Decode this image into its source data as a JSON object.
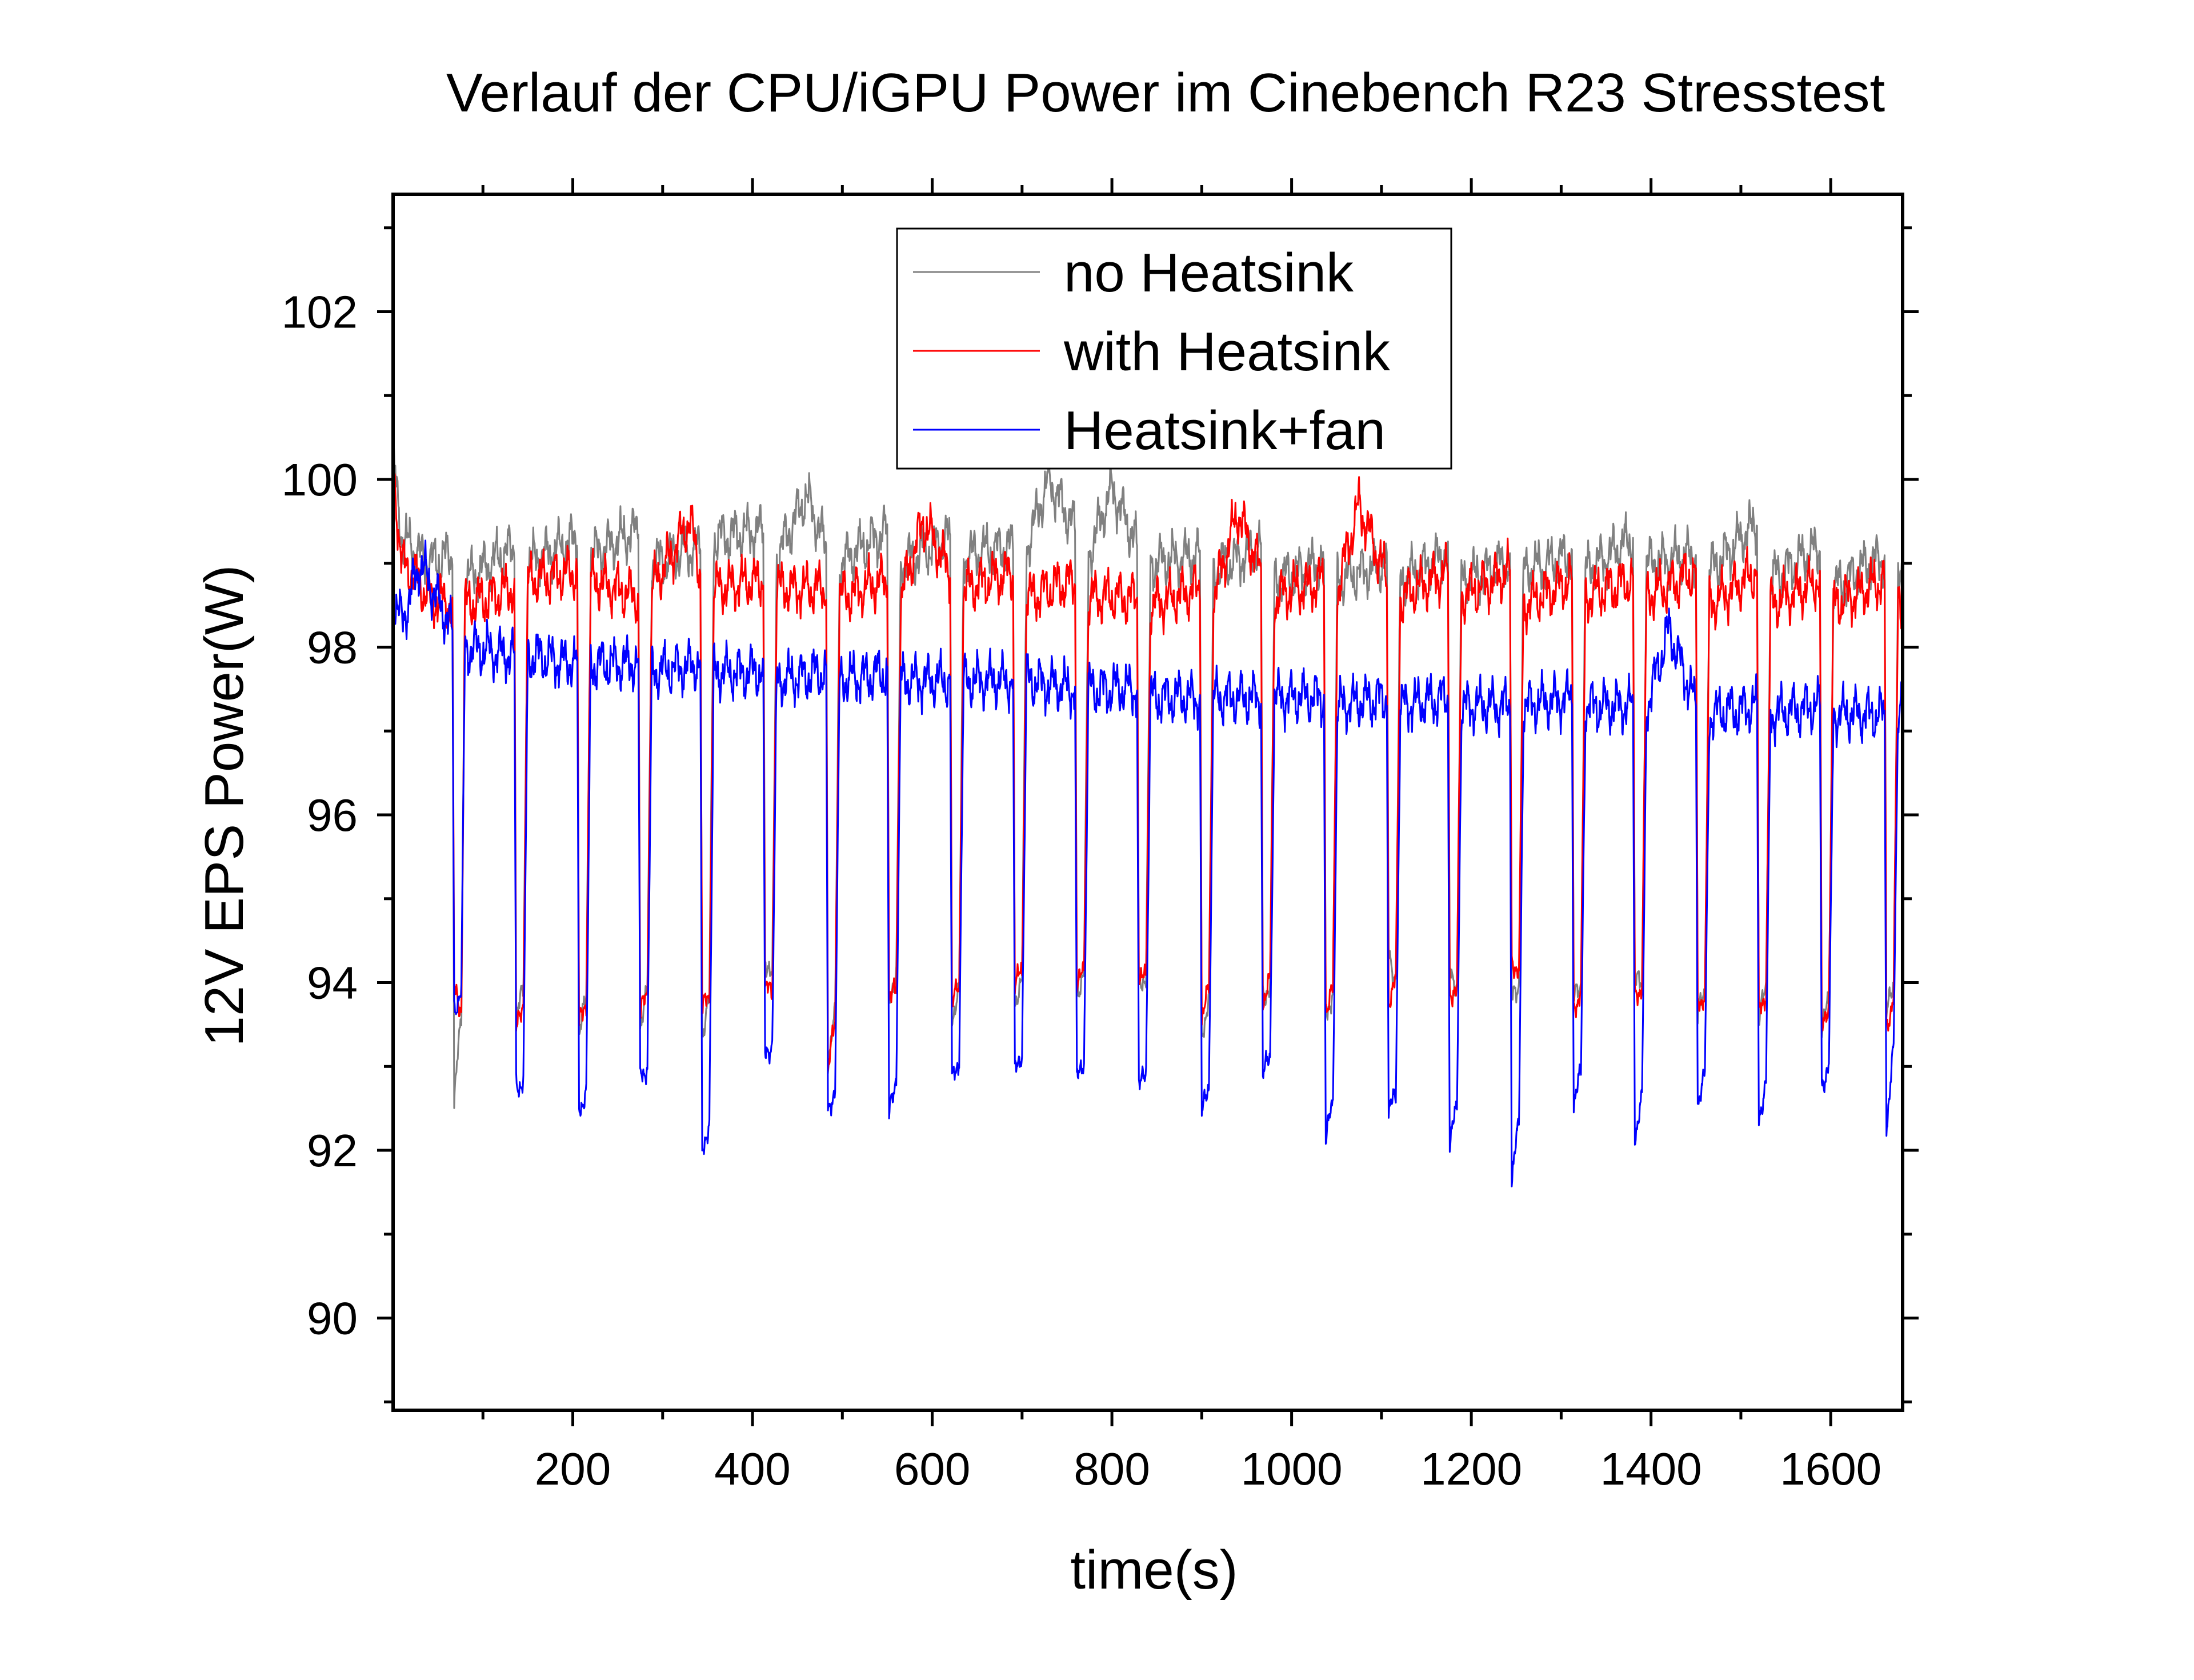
{
  "chart_data": {
    "type": "line",
    "title": "Verlauf der CPU/iGPU Power im Cinebench R23 Stresstest",
    "xlabel": "time(s)",
    "ylabel": "12V EPS Power(W)",
    "xlim": [
      0,
      1680
    ],
    "ylim": [
      88.9,
      103.4
    ],
    "x_ticks": [
      200,
      400,
      600,
      800,
      1000,
      1200,
      1400,
      1600
    ],
    "x_minor_ticks": [
      100,
      300,
      500,
      700,
      900,
      1100,
      1300,
      1500
    ],
    "y_ticks": [
      90,
      92,
      94,
      96,
      98,
      100,
      102
    ],
    "y_minor_ticks": [
      89,
      91,
      93,
      95,
      97,
      99,
      101,
      103
    ],
    "grid": false,
    "legend_position": "top-center",
    "dip_times": [
      66,
      135,
      205,
      273,
      342,
      412,
      482,
      550,
      620,
      690,
      759,
      828,
      898,
      966,
      1036,
      1106,
      1174,
      1243,
      1312,
      1380,
      1450,
      1518,
      1588,
      1660
    ],
    "series": [
      {
        "name": "no Heatsink",
        "color": "#808080",
        "points": [
          [
            0,
            100.2
          ],
          [
            10,
            99.3
          ],
          [
            40,
            99.0
          ],
          [
            66,
            99.1
          ],
          [
            68,
            92.6
          ],
          [
            76,
            93.6
          ],
          [
            80,
            98.8
          ],
          [
            135,
            99.2
          ],
          [
            137,
            93.6
          ],
          [
            145,
            93.9
          ],
          [
            150,
            99.0
          ],
          [
            205,
            99.3
          ],
          [
            207,
            93.4
          ],
          [
            215,
            93.8
          ],
          [
            220,
            99.1
          ],
          [
            273,
            99.4
          ],
          [
            275,
            93.5
          ],
          [
            283,
            93.9
          ],
          [
            288,
            99.0
          ],
          [
            342,
            99.2
          ],
          [
            344,
            93.4
          ],
          [
            352,
            93.8
          ],
          [
            357,
            99.3
          ],
          [
            412,
            99.4
          ],
          [
            414,
            94.3
          ],
          [
            422,
            94.0
          ],
          [
            427,
            99.1
          ],
          [
            460,
            99.8
          ],
          [
            482,
            99.2
          ],
          [
            484,
            93.1
          ],
          [
            492,
            93.6
          ],
          [
            497,
            99.0
          ],
          [
            550,
            99.4
          ],
          [
            552,
            93.9
          ],
          [
            560,
            94.0
          ],
          [
            565,
            99.0
          ],
          [
            620,
            99.3
          ],
          [
            622,
            93.6
          ],
          [
            630,
            93.9
          ],
          [
            635,
            99.1
          ],
          [
            690,
            99.2
          ],
          [
            692,
            93.8
          ],
          [
            700,
            94.0
          ],
          [
            705,
            99.2
          ],
          [
            730,
            100.0
          ],
          [
            759,
            99.4
          ],
          [
            761,
            93.9
          ],
          [
            769,
            94.1
          ],
          [
            774,
            99.1
          ],
          [
            800,
            99.9
          ],
          [
            828,
            99.2
          ],
          [
            830,
            94.1
          ],
          [
            838,
            94.0
          ],
          [
            843,
            99.0
          ],
          [
            898,
            99.1
          ],
          [
            900,
            93.4
          ],
          [
            908,
            93.8
          ],
          [
            913,
            98.9
          ],
          [
            966,
            99.2
          ],
          [
            968,
            93.8
          ],
          [
            976,
            94.0
          ],
          [
            981,
            98.8
          ],
          [
            1036,
            99.0
          ],
          [
            1038,
            93.6
          ],
          [
            1046,
            93.9
          ],
          [
            1051,
            98.8
          ],
          [
            1106,
            99.0
          ],
          [
            1108,
            94.4
          ],
          [
            1116,
            94.0
          ],
          [
            1121,
            98.8
          ],
          [
            1174,
            99.1
          ],
          [
            1176,
            94.1
          ],
          [
            1184,
            94.0
          ],
          [
            1189,
            98.8
          ],
          [
            1243,
            99.0
          ],
          [
            1245,
            93.8
          ],
          [
            1253,
            94.0
          ],
          [
            1258,
            98.9
          ],
          [
            1312,
            99.1
          ],
          [
            1314,
            93.8
          ],
          [
            1322,
            94.0
          ],
          [
            1327,
            98.9
          ],
          [
            1380,
            99.3
          ],
          [
            1382,
            94.0
          ],
          [
            1390,
            94.0
          ],
          [
            1395,
            99.0
          ],
          [
            1450,
            99.1
          ],
          [
            1452,
            93.6
          ],
          [
            1460,
            93.9
          ],
          [
            1465,
            98.9
          ],
          [
            1518,
            99.5
          ],
          [
            1520,
            93.6
          ],
          [
            1528,
            93.9
          ],
          [
            1533,
            98.8
          ],
          [
            1588,
            99.2
          ],
          [
            1590,
            93.4
          ],
          [
            1598,
            93.8
          ],
          [
            1603,
            98.7
          ],
          [
            1660,
            99.1
          ],
          [
            1662,
            93.6
          ],
          [
            1670,
            94.0
          ],
          [
            1675,
            98.8
          ],
          [
            1680,
            98.6
          ]
        ]
      },
      {
        "name": "with Heatsink",
        "color": "#ff0000",
        "points": [
          [
            0,
            100.1
          ],
          [
            10,
            99.0
          ],
          [
            40,
            98.6
          ],
          [
            66,
            98.5
          ],
          [
            68,
            93.9
          ],
          [
            76,
            93.7
          ],
          [
            80,
            98.5
          ],
          [
            135,
            98.7
          ],
          [
            137,
            93.4
          ],
          [
            145,
            93.8
          ],
          [
            150,
            98.8
          ],
          [
            205,
            98.9
          ],
          [
            207,
            93.5
          ],
          [
            215,
            93.8
          ],
          [
            220,
            98.8
          ],
          [
            273,
            98.6
          ],
          [
            275,
            93.6
          ],
          [
            283,
            93.9
          ],
          [
            288,
            98.7
          ],
          [
            330,
            99.5
          ],
          [
            342,
            98.9
          ],
          [
            344,
            93.7
          ],
          [
            352,
            93.8
          ],
          [
            357,
            98.7
          ],
          [
            412,
            98.8
          ],
          [
            414,
            93.9
          ],
          [
            422,
            93.9
          ],
          [
            427,
            98.7
          ],
          [
            482,
            98.7
          ],
          [
            484,
            92.9
          ],
          [
            492,
            93.6
          ],
          [
            497,
            98.6
          ],
          [
            550,
            98.8
          ],
          [
            552,
            93.8
          ],
          [
            560,
            93.9
          ],
          [
            565,
            98.6
          ],
          [
            590,
            99.5
          ],
          [
            620,
            98.9
          ],
          [
            622,
            93.8
          ],
          [
            630,
            93.9
          ],
          [
            635,
            98.7
          ],
          [
            690,
            98.9
          ],
          [
            692,
            94.0
          ],
          [
            700,
            94.1
          ],
          [
            705,
            98.6
          ],
          [
            759,
            98.8
          ],
          [
            761,
            94.0
          ],
          [
            769,
            94.1
          ],
          [
            774,
            98.6
          ],
          [
            828,
            98.6
          ],
          [
            830,
            94.1
          ],
          [
            838,
            94.0
          ],
          [
            843,
            98.5
          ],
          [
            898,
            98.7
          ],
          [
            900,
            93.6
          ],
          [
            908,
            93.9
          ],
          [
            913,
            98.6
          ],
          [
            940,
            99.6
          ],
          [
            966,
            98.9
          ],
          [
            968,
            93.8
          ],
          [
            976,
            94.0
          ],
          [
            981,
            98.6
          ],
          [
            1036,
            98.8
          ],
          [
            1038,
            93.7
          ],
          [
            1046,
            93.9
          ],
          [
            1051,
            98.7
          ],
          [
            1075,
            99.7
          ],
          [
            1106,
            98.8
          ],
          [
            1108,
            93.8
          ],
          [
            1116,
            94.0
          ],
          [
            1121,
            98.6
          ],
          [
            1174,
            98.9
          ],
          [
            1176,
            93.9
          ],
          [
            1184,
            93.9
          ],
          [
            1189,
            98.6
          ],
          [
            1243,
            98.9
          ],
          [
            1245,
            94.3
          ],
          [
            1253,
            94.1
          ],
          [
            1258,
            98.5
          ],
          [
            1312,
            98.8
          ],
          [
            1314,
            93.7
          ],
          [
            1322,
            93.9
          ],
          [
            1327,
            98.6
          ],
          [
            1380,
            98.8
          ],
          [
            1382,
            93.8
          ],
          [
            1390,
            94.0
          ],
          [
            1395,
            98.6
          ],
          [
            1450,
            98.9
          ],
          [
            1452,
            93.7
          ],
          [
            1460,
            93.9
          ],
          [
            1465,
            98.5
          ],
          [
            1518,
            98.9
          ],
          [
            1520,
            93.6
          ],
          [
            1528,
            93.9
          ],
          [
            1533,
            98.5
          ],
          [
            1588,
            98.8
          ],
          [
            1590,
            93.4
          ],
          [
            1598,
            93.8
          ],
          [
            1603,
            98.5
          ],
          [
            1660,
            98.8
          ],
          [
            1662,
            93.4
          ],
          [
            1670,
            93.9
          ],
          [
            1675,
            98.5
          ],
          [
            1680,
            98.4
          ]
        ]
      },
      {
        "name": "Heatsink+fan",
        "color": "#0000ff",
        "points": [
          [
            0,
            98.6
          ],
          [
            10,
            98.3
          ],
          [
            30,
            99.0
          ],
          [
            66,
            98.2
          ],
          [
            68,
            93.7
          ],
          [
            76,
            93.9
          ],
          [
            80,
            98.0
          ],
          [
            135,
            97.9
          ],
          [
            137,
            92.8
          ],
          [
            145,
            92.8
          ],
          [
            150,
            97.9
          ],
          [
            205,
            97.8
          ],
          [
            207,
            92.5
          ],
          [
            215,
            92.7
          ],
          [
            220,
            97.8
          ],
          [
            273,
            97.8
          ],
          [
            275,
            92.9
          ],
          [
            283,
            93.0
          ],
          [
            288,
            97.7
          ],
          [
            342,
            97.8
          ],
          [
            344,
            91.9
          ],
          [
            352,
            92.4
          ],
          [
            357,
            97.7
          ],
          [
            412,
            97.7
          ],
          [
            414,
            93.1
          ],
          [
            422,
            93.3
          ],
          [
            427,
            97.6
          ],
          [
            482,
            97.7
          ],
          [
            484,
            92.4
          ],
          [
            492,
            92.8
          ],
          [
            497,
            97.6
          ],
          [
            550,
            97.7
          ],
          [
            552,
            92.4
          ],
          [
            560,
            92.9
          ],
          [
            565,
            97.6
          ],
          [
            620,
            97.6
          ],
          [
            622,
            92.8
          ],
          [
            630,
            93.1
          ],
          [
            635,
            97.6
          ],
          [
            690,
            97.6
          ],
          [
            692,
            92.9
          ],
          [
            700,
            93.2
          ],
          [
            705,
            97.6
          ],
          [
            759,
            97.5
          ],
          [
            761,
            92.8
          ],
          [
            769,
            93.1
          ],
          [
            774,
            97.5
          ],
          [
            828,
            97.5
          ],
          [
            830,
            92.7
          ],
          [
            838,
            93.0
          ],
          [
            843,
            97.4
          ],
          [
            898,
            97.4
          ],
          [
            900,
            92.4
          ],
          [
            908,
            92.8
          ],
          [
            913,
            97.4
          ],
          [
            966,
            97.4
          ],
          [
            968,
            92.9
          ],
          [
            976,
            93.1
          ],
          [
            981,
            97.4
          ],
          [
            1036,
            97.4
          ],
          [
            1038,
            92.1
          ],
          [
            1046,
            92.6
          ],
          [
            1051,
            97.3
          ],
          [
            1106,
            97.4
          ],
          [
            1108,
            92.4
          ],
          [
            1116,
            92.7
          ],
          [
            1121,
            97.3
          ],
          [
            1174,
            97.4
          ],
          [
            1176,
            92.1
          ],
          [
            1184,
            92.5
          ],
          [
            1189,
            97.3
          ],
          [
            1243,
            97.3
          ],
          [
            1245,
            91.7
          ],
          [
            1253,
            92.3
          ],
          [
            1258,
            97.3
          ],
          [
            1312,
            97.4
          ],
          [
            1314,
            92.6
          ],
          [
            1322,
            92.9
          ],
          [
            1327,
            97.3
          ],
          [
            1380,
            97.3
          ],
          [
            1382,
            92.2
          ],
          [
            1390,
            92.6
          ],
          [
            1395,
            97.3
          ],
          [
            1420,
            98.2
          ],
          [
            1450,
            97.3
          ],
          [
            1452,
            92.6
          ],
          [
            1460,
            92.9
          ],
          [
            1465,
            97.2
          ],
          [
            1518,
            97.3
          ],
          [
            1520,
            92.4
          ],
          [
            1528,
            92.8
          ],
          [
            1533,
            97.2
          ],
          [
            1588,
            97.3
          ],
          [
            1590,
            92.8
          ],
          [
            1598,
            93.0
          ],
          [
            1603,
            97.2
          ],
          [
            1660,
            97.2
          ],
          [
            1662,
            92.3
          ],
          [
            1670,
            93.2
          ],
          [
            1675,
            97.3
          ],
          [
            1680,
            97.6
          ]
        ]
      }
    ]
  }
}
